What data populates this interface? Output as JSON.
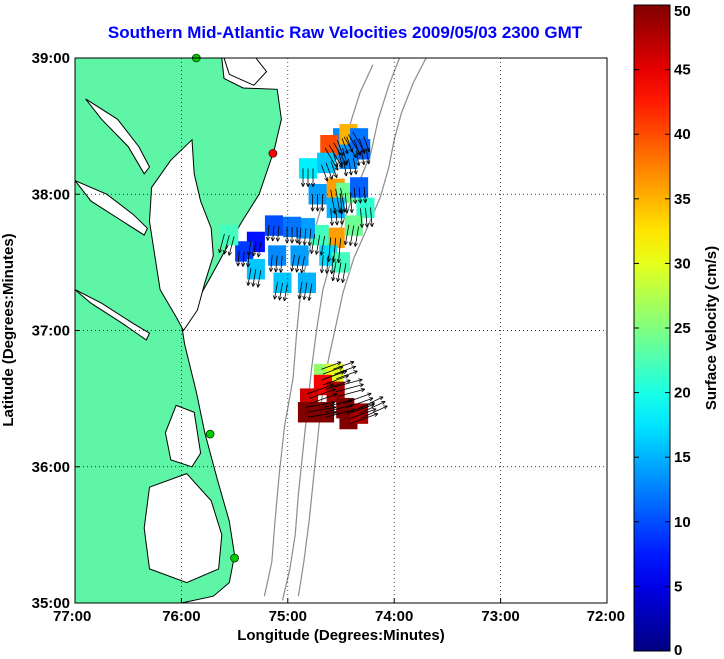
{
  "chart_data": {
    "type": "heatmap",
    "title": "Southern Mid-Atlantic Raw Velocities 2009/05/03 2300 GMT",
    "xlabel": "Longitude (Degrees:Minutes)",
    "ylabel": "Latitude (Degrees:Minutes)",
    "x_ticks": [
      {
        "value": -77,
        "label": "77:00"
      },
      {
        "value": -76,
        "label": "76:00"
      },
      {
        "value": -75,
        "label": "75:00"
      },
      {
        "value": -74,
        "label": "74:00"
      },
      {
        "value": -73,
        "label": "73:00"
      },
      {
        "value": -72,
        "label": "72:00"
      }
    ],
    "y_ticks": [
      {
        "value": 35,
        "label": "35:00"
      },
      {
        "value": 36,
        "label": "36:00"
      },
      {
        "value": 37,
        "label": "37:00"
      },
      {
        "value": 38,
        "label": "38:00"
      },
      {
        "value": 39,
        "label": "39:00"
      }
    ],
    "xlim": [
      -77,
      -72
    ],
    "ylim": [
      35,
      39
    ],
    "grid": "dotted",
    "colorbar": {
      "label": "Surface Velocity (cm/s)",
      "range": [
        0,
        50
      ],
      "colormap": "jet",
      "ticks": [
        "0",
        "5",
        "10",
        "15",
        "20",
        "25",
        "30",
        "35",
        "40",
        "45",
        "50"
      ]
    },
    "land_color": "#5ef5a6",
    "contour_color": "#8c8c8c",
    "stations": [
      {
        "lon": -75.86,
        "lat": 39.0,
        "color": "#00cc00"
      },
      {
        "lon": -75.14,
        "lat": 38.3,
        "color": "#ff0000"
      },
      {
        "lon": -75.73,
        "lat": 36.24,
        "color": "#00cc00"
      },
      {
        "lon": -75.5,
        "lat": 35.33,
        "color": "#00cc00"
      }
    ],
    "velocity_cells": [
      {
        "lon": -74.49,
        "lat": 38.41,
        "speed": 13,
        "dir": 160
      },
      {
        "lon": -74.53,
        "lat": 38.33,
        "speed": 14,
        "dir": 165
      },
      {
        "lon": -74.61,
        "lat": 38.36,
        "speed": 40,
        "dir": 150
      },
      {
        "lon": -74.43,
        "lat": 38.44,
        "speed": 35,
        "dir": 150
      },
      {
        "lon": -74.33,
        "lat": 38.41,
        "speed": 12,
        "dir": 160
      },
      {
        "lon": -74.31,
        "lat": 38.33,
        "speed": 11,
        "dir": 170
      },
      {
        "lon": -74.43,
        "lat": 38.26,
        "speed": 13,
        "dir": 170
      },
      {
        "lon": -74.64,
        "lat": 38.23,
        "speed": 16,
        "dir": 160
      },
      {
        "lon": -74.81,
        "lat": 38.19,
        "speed": 18,
        "dir": 180
      },
      {
        "lon": -74.55,
        "lat": 38.04,
        "speed": 36,
        "dir": 170
      },
      {
        "lon": -74.46,
        "lat": 38.01,
        "speed": 24,
        "dir": 175
      },
      {
        "lon": -74.33,
        "lat": 38.05,
        "speed": 11,
        "dir": 175
      },
      {
        "lon": -74.27,
        "lat": 37.9,
        "speed": 21,
        "dir": 175
      },
      {
        "lon": -74.38,
        "lat": 37.77,
        "speed": 24,
        "dir": 190
      },
      {
        "lon": -74.55,
        "lat": 37.68,
        "speed": 36,
        "dir": 185
      },
      {
        "lon": -74.7,
        "lat": 37.7,
        "speed": 22,
        "dir": 190
      },
      {
        "lon": -74.83,
        "lat": 37.75,
        "speed": 14,
        "dir": 185
      },
      {
        "lon": -74.96,
        "lat": 37.76,
        "speed": 12,
        "dir": 180
      },
      {
        "lon": -75.13,
        "lat": 37.77,
        "speed": 10,
        "dir": 185
      },
      {
        "lon": -75.3,
        "lat": 37.65,
        "speed": 7,
        "dir": 190
      },
      {
        "lon": -75.1,
        "lat": 37.55,
        "speed": 13,
        "dir": 185
      },
      {
        "lon": -74.89,
        "lat": 37.55,
        "speed": 14,
        "dir": 190
      },
      {
        "lon": -74.62,
        "lat": 37.55,
        "speed": 17,
        "dir": 185
      },
      {
        "lon": -74.5,
        "lat": 37.5,
        "speed": 22,
        "dir": 190
      },
      {
        "lon": -75.41,
        "lat": 37.58,
        "speed": 9,
        "dir": 185
      },
      {
        "lon": -75.55,
        "lat": 37.7,
        "speed": 22,
        "dir": 195
      },
      {
        "lon": -75.3,
        "lat": 37.45,
        "speed": 16,
        "dir": 190
      },
      {
        "lon": -75.05,
        "lat": 37.35,
        "speed": 16,
        "dir": 190
      },
      {
        "lon": -74.82,
        "lat": 37.35,
        "speed": 15,
        "dir": 190
      },
      {
        "lon": -74.55,
        "lat": 37.9,
        "speed": 15,
        "dir": 175
      },
      {
        "lon": -74.72,
        "lat": 38.0,
        "speed": 14,
        "dir": 180
      },
      {
        "lon": -74.67,
        "lat": 36.68,
        "speed": 26,
        "dir": 70
      },
      {
        "lon": -74.56,
        "lat": 36.68,
        "speed": 30,
        "dir": 70
      },
      {
        "lon": -74.67,
        "lat": 36.6,
        "speed": 44,
        "dir": 70
      },
      {
        "lon": -74.55,
        "lat": 36.55,
        "speed": 48,
        "dir": 75
      },
      {
        "lon": -74.8,
        "lat": 36.5,
        "speed": 46,
        "dir": 70
      },
      {
        "lon": -74.82,
        "lat": 36.4,
        "speed": 50,
        "dir": 80
      },
      {
        "lon": -74.65,
        "lat": 36.4,
        "speed": 50,
        "dir": 75
      },
      {
        "lon": -74.46,
        "lat": 36.43,
        "speed": 50,
        "dir": 70
      },
      {
        "lon": -74.43,
        "lat": 36.35,
        "speed": 50,
        "dir": 70
      },
      {
        "lon": -74.33,
        "lat": 36.39,
        "speed": 48,
        "dir": 65
      }
    ]
  }
}
